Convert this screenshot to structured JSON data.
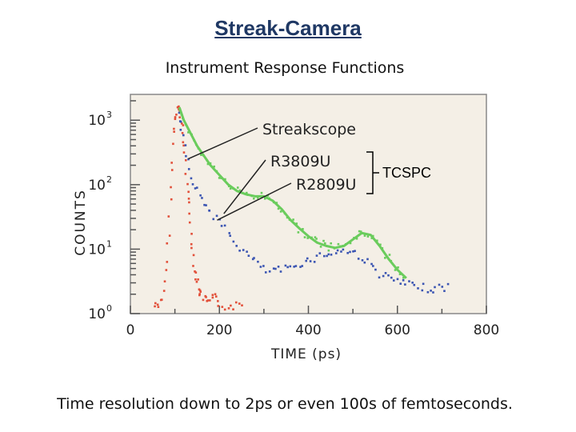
{
  "slide": {
    "title": "Streak-Camera",
    "subtitle": "Instrument Response Functions",
    "caption": "Time resolution down to 2ps or even 100s of femtoseconds.",
    "bracket_label": "TCSPC"
  },
  "colors": {
    "plot_background": "#f4efe6",
    "red": "#e2503a",
    "blue": "#3b55b2",
    "green": "#6acc5c",
    "title": "#1f3864"
  },
  "chart_data": {
    "type": "scatter",
    "title": "Instrument Response Functions",
    "xlabel": "TIME (ps)",
    "ylabel": "COUNTS",
    "xlim": [
      0,
      800
    ],
    "ylim_log10": [
      0,
      3.4
    ],
    "x_ticks": [
      {
        "value": 0,
        "label": "0"
      },
      {
        "value": 200,
        "label": "200"
      },
      {
        "value": 400,
        "label": "400"
      },
      {
        "value": 600,
        "label": "600"
      },
      {
        "value": 800,
        "label": "800"
      }
    ],
    "y_ticks": [
      {
        "exp": 0,
        "label": "10",
        "sup": "0"
      },
      {
        "exp": 1,
        "label": "10",
        "sup": "1"
      },
      {
        "exp": 2,
        "label": "10",
        "sup": "2"
      },
      {
        "exp": 3,
        "label": "10",
        "sup": "3"
      }
    ],
    "annotations": [
      {
        "label": "Streakscope",
        "series": "Streakscope",
        "point": [
          130,
          2.4
        ]
      },
      {
        "label": "R3809U",
        "series": "R3809U",
        "point": [
          210,
          1.55
        ]
      },
      {
        "label": "R2809U",
        "series": "R2809U",
        "point": [
          195,
          1.45
        ]
      }
    ],
    "series": [
      {
        "name": "Streakscope",
        "color": "red",
        "style": "dots",
        "x": [
          55,
          65,
          75,
          82,
          88,
          93,
          98,
          103,
          108,
          112,
          116,
          120,
          125,
          130,
          135,
          140,
          145,
          150,
          155,
          160,
          170,
          180,
          190,
          200,
          220,
          240,
          260
        ],
        "y": [
          0.12,
          0.15,
          0.3,
          0.8,
          1.5,
          2.2,
          2.8,
          3.1,
          3.2,
          3.1,
          2.9,
          2.6,
          2.2,
          1.8,
          1.4,
          1.0,
          0.7,
          0.5,
          0.35,
          0.28,
          0.2,
          0.18,
          0.25,
          0.15,
          0.1,
          0.12,
          0.15
        ]
      },
      {
        "name": "R3809U",
        "color": "blue",
        "style": "dots",
        "x": [
          110,
          115,
          125,
          135,
          150,
          165,
          180,
          200,
          220,
          240,
          260,
          280,
          300,
          320,
          340,
          360,
          380,
          400,
          420,
          440,
          460,
          480,
          500,
          520,
          540,
          560,
          580,
          600,
          620,
          640,
          660,
          680,
          700,
          720
        ],
        "y": [
          3.1,
          2.9,
          2.5,
          2.15,
          1.9,
          1.72,
          1.58,
          1.42,
          1.25,
          1.08,
          0.92,
          0.82,
          0.68,
          0.65,
          0.68,
          0.7,
          0.78,
          0.82,
          0.88,
          0.92,
          0.95,
          0.98,
          0.95,
          0.88,
          0.75,
          0.62,
          0.55,
          0.5,
          0.45,
          0.42,
          0.4,
          0.38,
          0.4,
          0.42
        ]
      },
      {
        "name": "R2809U",
        "color": "green",
        "style": "dots+line",
        "x": [
          110,
          120,
          135,
          150,
          165,
          180,
          200,
          220,
          240,
          260,
          280,
          300,
          320,
          340,
          360,
          380,
          400,
          420,
          440,
          460,
          480,
          500,
          520,
          540,
          560,
          580,
          600,
          620
        ],
        "y": [
          3.2,
          3.0,
          2.8,
          2.6,
          2.45,
          2.3,
          2.15,
          2.0,
          1.9,
          1.85,
          1.82,
          1.82,
          1.75,
          1.62,
          1.45,
          1.32,
          1.2,
          1.1,
          1.05,
          1.02,
          1.05,
          1.15,
          1.25,
          1.22,
          1.05,
          0.85,
          0.68,
          0.55
        ]
      }
    ]
  }
}
